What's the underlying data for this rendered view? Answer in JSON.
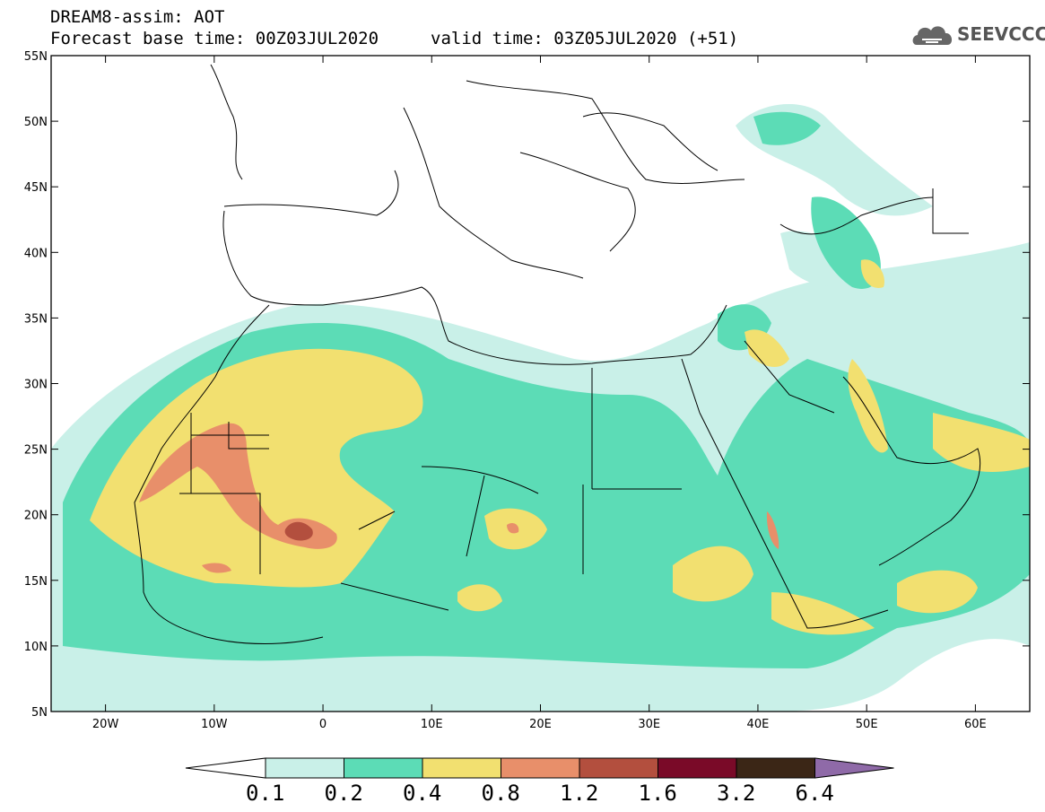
{
  "header": {
    "title": "DREAM8-assim: AOT",
    "base_time": "Forecast base time: 00Z03JUL2020",
    "valid_time": "valid time: 03Z05JUL2020 (+51)"
  },
  "logo": {
    "text": "SEEVCCC",
    "icon": "cloud-icon"
  },
  "map": {
    "lon_ticks": [
      "20W",
      "10W",
      "0",
      "10E",
      "20E",
      "30E",
      "40E",
      "50E",
      "60E"
    ],
    "lat_ticks": [
      "55N",
      "50N",
      "45N",
      "40N",
      "35N",
      "30N",
      "25N",
      "20N",
      "15N",
      "10N",
      "5N"
    ],
    "lon_range": [
      -25,
      65
    ],
    "lat_range": [
      5,
      55
    ]
  },
  "colorbar": {
    "labels": [
      "0.1",
      "0.2",
      "0.4",
      "0.8",
      "1.2",
      "1.6",
      "3.2",
      "6.4"
    ],
    "colors": [
      "#c9f0e8",
      "#5cdcb6",
      "#f2e070",
      "#e88f6a",
      "#b34f3e",
      "#7a0a28",
      "#3b2616",
      "#8f6aa8"
    ],
    "under_color": "#ffffff"
  }
}
